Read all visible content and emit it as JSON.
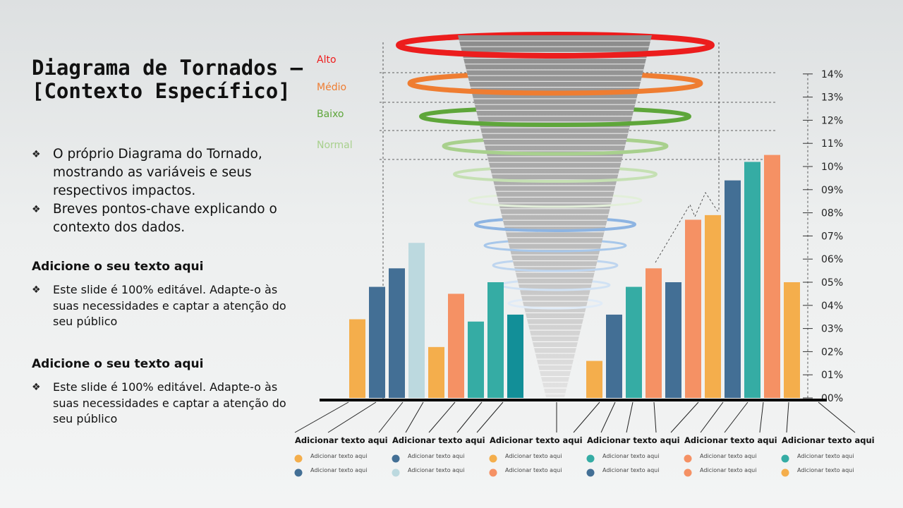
{
  "title": "Diagrama de Tornados – [Contexto Específico]",
  "intro_bullets": [
    "O próprio Diagrama do Tornado, mostrando as variáveis e seus respectivos impactos.",
    "Breves pontos-chave explicando o contexto dos dados."
  ],
  "sections": [
    {
      "heading": "Adicione o seu texto aqui",
      "bullet": "Este slide é 100% editável. Adapte-o às suas necessidades e captar a atenção do seu público"
    },
    {
      "heading": "Adicione o seu texto aqui",
      "bullet": "Este slide é 100% editável. Adapte-o às suas necessidades e captar a atenção do seu público"
    }
  ],
  "bullet_glyph": "❖",
  "levels": [
    {
      "label": "Alto",
      "color": "#ee1c1c"
    },
    {
      "label": "Médio",
      "color": "#ef7d31"
    },
    {
      "label": "Baixo",
      "color": "#5ea63a"
    },
    {
      "label": "Normal",
      "color": "#a8d08d"
    }
  ],
  "chart_data": {
    "type": "bar",
    "y_ticks": [
      "00%",
      "01%",
      "02%",
      "03%",
      "04%",
      "05%",
      "06%",
      "07%",
      "08%",
      "09%",
      "10%",
      "11%",
      "12%",
      "13%",
      "14%"
    ],
    "ylim": [
      0,
      14
    ],
    "left_bars": [
      {
        "value": 3.4,
        "color": "#f4ae4c"
      },
      {
        "value": 4.8,
        "color": "#436f95"
      },
      {
        "value": 5.6,
        "color": "#436f95"
      },
      {
        "value": 6.7,
        "color": "#bcd9df"
      },
      {
        "value": 2.2,
        "color": "#f4ae4c"
      },
      {
        "value": 4.5,
        "color": "#f59164"
      },
      {
        "value": 3.3,
        "color": "#35aca4"
      },
      {
        "value": 5.0,
        "color": "#35aca4"
      },
      {
        "value": 3.6,
        "color": "#128f98"
      }
    ],
    "right_bars": [
      {
        "value": 1.6,
        "color": "#f4ae4c"
      },
      {
        "value": 3.6,
        "color": "#436f95"
      },
      {
        "value": 4.8,
        "color": "#35aca4"
      },
      {
        "value": 5.6,
        "color": "#f59164"
      },
      {
        "value": 5.0,
        "color": "#436f95"
      },
      {
        "value": 7.7,
        "color": "#f59164"
      },
      {
        "value": 7.9,
        "color": "#f4ae4c"
      },
      {
        "value": 9.4,
        "color": "#436f95"
      },
      {
        "value": 10.2,
        "color": "#35aca4"
      },
      {
        "value": 10.5,
        "color": "#f59164"
      },
      {
        "value": 5.0,
        "color": "#f4ae4c"
      }
    ],
    "categories": [
      {
        "label": "Adicionar texto aqui",
        "legend": [
          {
            "text": "Adicionar texto aqui",
            "color": "#f4ae4c"
          },
          {
            "text": "Adicionar texto aqui",
            "color": "#436f95"
          }
        ]
      },
      {
        "label": "Adicionar texto aqui",
        "legend": [
          {
            "text": "Adicionar texto aqui",
            "color": "#436f95"
          },
          {
            "text": "Adicionar texto aqui",
            "color": "#bcd9df"
          }
        ]
      },
      {
        "label": "Adicionar texto aqui",
        "legend": [
          {
            "text": "Adicionar texto aqui",
            "color": "#f4ae4c"
          },
          {
            "text": "Adicionar texto aqui",
            "color": "#f59164"
          }
        ]
      },
      {
        "label": "Adicionar texto aqui",
        "legend": [
          {
            "text": "Adicionar texto aqui",
            "color": "#35aca4"
          },
          {
            "text": "Adicionar texto aqui",
            "color": "#436f95"
          }
        ]
      },
      {
        "label": "Adicionar texto aqui",
        "legend": [
          {
            "text": "Adicionar texto aqui",
            "color": "#f59164"
          },
          {
            "text": "Adicionar texto aqui",
            "color": "#f59164"
          }
        ]
      },
      {
        "label": "Adicionar texto aqui",
        "legend": [
          {
            "text": "Adicionar texto aqui",
            "color": "#35aca4"
          },
          {
            "text": "Adicionar texto aqui",
            "color": "#f4ae4c"
          }
        ]
      }
    ]
  }
}
